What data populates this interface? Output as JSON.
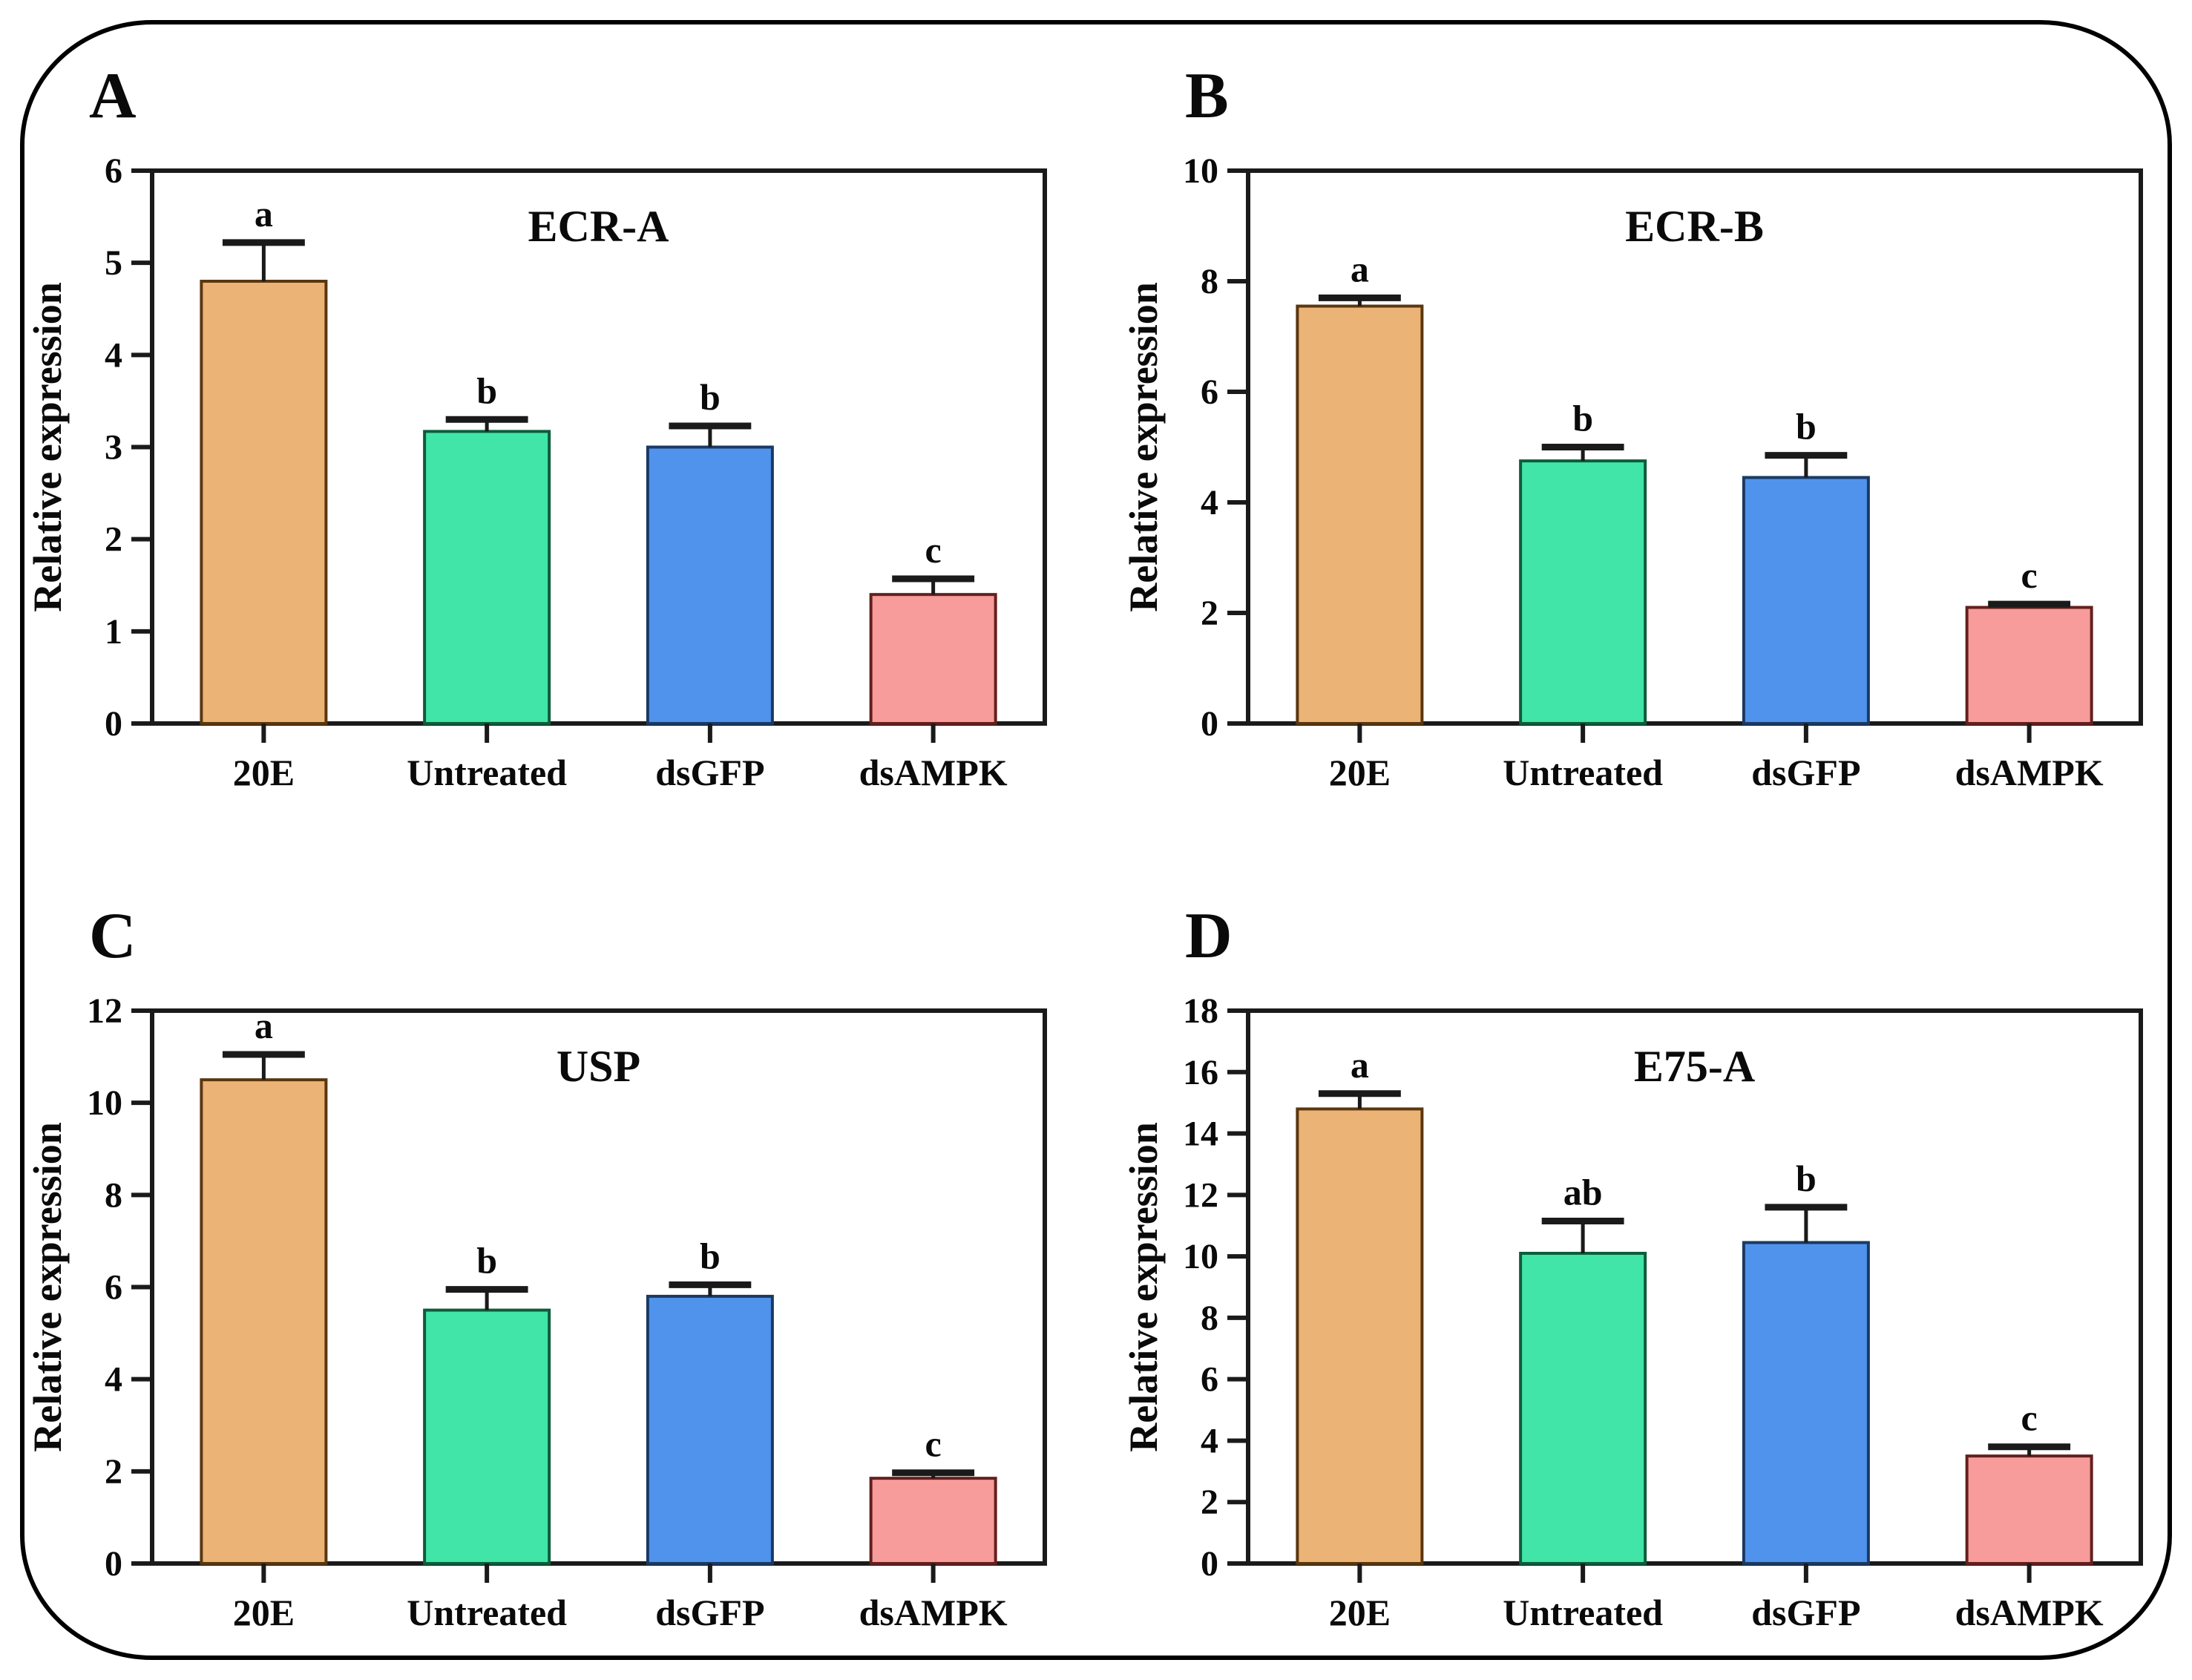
{
  "figure": {
    "background": "#ffffff",
    "border_color": "#000000",
    "axis_color": "#1a1a1a",
    "text_color": "#0a0a0a",
    "bar_fill_colors": [
      "#ECB377",
      "#41E5A7",
      "#5093EC",
      "#F79B9B"
    ],
    "bar_edge_colors": [
      "#59370F",
      "#0D5C3C",
      "#1A3A63",
      "#63201E"
    ]
  },
  "chart_data": [
    {
      "type": "bar",
      "panel_label": "A",
      "title": "ECR-A",
      "ylabel": "Relative expression",
      "categories": [
        "20E",
        "Untreated",
        "dsGFP",
        "dsAMPK"
      ],
      "values": [
        4.8,
        3.17,
        3.0,
        1.4
      ],
      "errors": [
        0.42,
        0.13,
        0.23,
        0.17
      ],
      "sig_letters": [
        "a",
        "b",
        "b",
        "c"
      ],
      "ylim": [
        0,
        6
      ],
      "ytick_step": 1,
      "grid": false,
      "legend": "none"
    },
    {
      "type": "bar",
      "panel_label": "B",
      "title": "ECR-B",
      "ylabel": "Relative expression",
      "categories": [
        "20E",
        "Untreated",
        "dsGFP",
        "dsAMPK"
      ],
      "values": [
        7.55,
        4.75,
        4.45,
        2.1
      ],
      "errors": [
        0.15,
        0.25,
        0.4,
        0.06
      ],
      "sig_letters": [
        "a",
        "b",
        "b",
        "c"
      ],
      "ylim": [
        0,
        10
      ],
      "ytick_step": 2,
      "grid": false,
      "legend": "none"
    },
    {
      "type": "bar",
      "panel_label": "C",
      "title": "USP",
      "ylabel": "Relative expression",
      "categories": [
        "20E",
        "Untreated",
        "dsGFP",
        "dsAMPK"
      ],
      "values": [
        10.5,
        5.5,
        5.8,
        1.85
      ],
      "errors": [
        0.55,
        0.45,
        0.25,
        0.12
      ],
      "sig_letters": [
        "a",
        "b",
        "b",
        "c"
      ],
      "ylim": [
        0,
        12
      ],
      "ytick_step": 2,
      "grid": false,
      "legend": "none"
    },
    {
      "type": "bar",
      "panel_label": "D",
      "title": "E75-A",
      "ylabel": "Relative expression",
      "categories": [
        "20E",
        "Untreated",
        "dsGFP",
        "dsAMPK"
      ],
      "values": [
        14.8,
        10.1,
        10.45,
        3.5
      ],
      "errors": [
        0.5,
        1.05,
        1.15,
        0.3
      ],
      "sig_letters": [
        "a",
        "ab",
        "b",
        "c"
      ],
      "ylim": [
        0,
        18
      ],
      "ytick_step": 2,
      "grid": false,
      "legend": "none"
    }
  ]
}
